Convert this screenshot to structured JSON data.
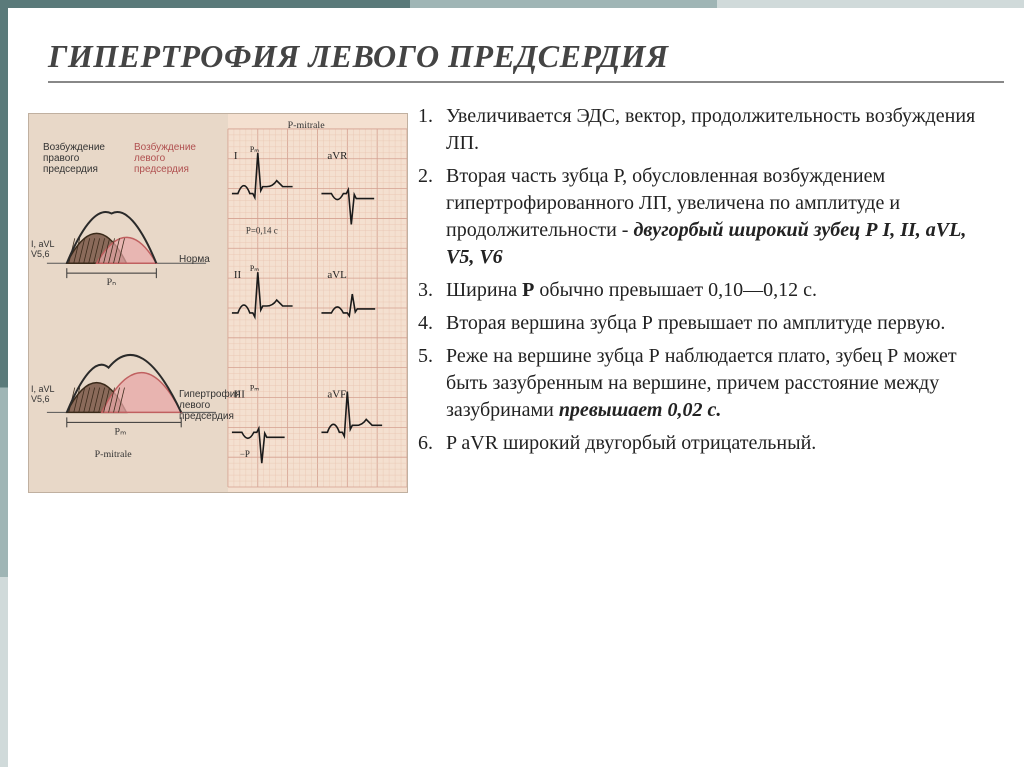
{
  "title": "ГИПЕРТРОФИЯ ЛЕВОГО ПРЕДСЕРДИЯ",
  "points": [
    {
      "pre": "Увеличивается ЭДС, вектор, продолжительность возбуждения ЛП.",
      "em": "",
      "post": ""
    },
    {
      "pre": "Вторая часть зубца Р, обусловленная возбуждением гипертрофированного ЛП, увеличена по амплитуде и продолжительности - ",
      "em": "двугорбый широкий зубец Р I, II, aVL, V5, V6",
      "post": ""
    },
    {
      "pre": "Ширина ",
      "bold": "Р",
      "mid": " обычно превышает  0,10—0,12 с.",
      "em": "",
      "post": ""
    },
    {
      "pre": "Вторая вершина зубца Р превышает по амплитуде первую.",
      "em": "",
      "post": ""
    },
    {
      "pre": "Реже на вершине зубца Р наблюдается плато, зубец Р может быть зазубренным на вершине, причем расстояние между зазубринами ",
      "em": "превышает 0,02 с.",
      "post": ""
    },
    {
      "pre": "P aVR  широкий двугорбый отрицательный.",
      "em": "",
      "post": ""
    }
  ],
  "figure": {
    "background": "#e8d8c8",
    "grid_color": "#d4a090",
    "grid_fine": "#e8c4b0",
    "left_labels": {
      "right_atrium": "Возбуждение правого предсердия",
      "left_atrium": "Возбуждение левого предсердия",
      "norm": "Норма",
      "hypertrophy": "Гипертрофия левого предсердия",
      "leads": "I, aVL V5,6",
      "p_mitrale": "P-mitrale",
      "pn": "Pₙ",
      "pm": "Pₘ"
    },
    "ecg": {
      "title_top": "P-mitrale",
      "p_value": "P=0,14 с",
      "leads_left": [
        "I",
        "II",
        "III"
      ],
      "leads_right": [
        "aVR",
        "aVL",
        "aVF"
      ],
      "pm_label": "Pₘ",
      "neg_p": "−P"
    },
    "colors": {
      "right_fill": "#6b4a3a",
      "right_hatch": "#3a2a1a",
      "left_fill": "#d88080",
      "left_stroke": "#b84040",
      "curve": "#2a2a2a",
      "ecg_trace": "#1a1a1a"
    }
  }
}
